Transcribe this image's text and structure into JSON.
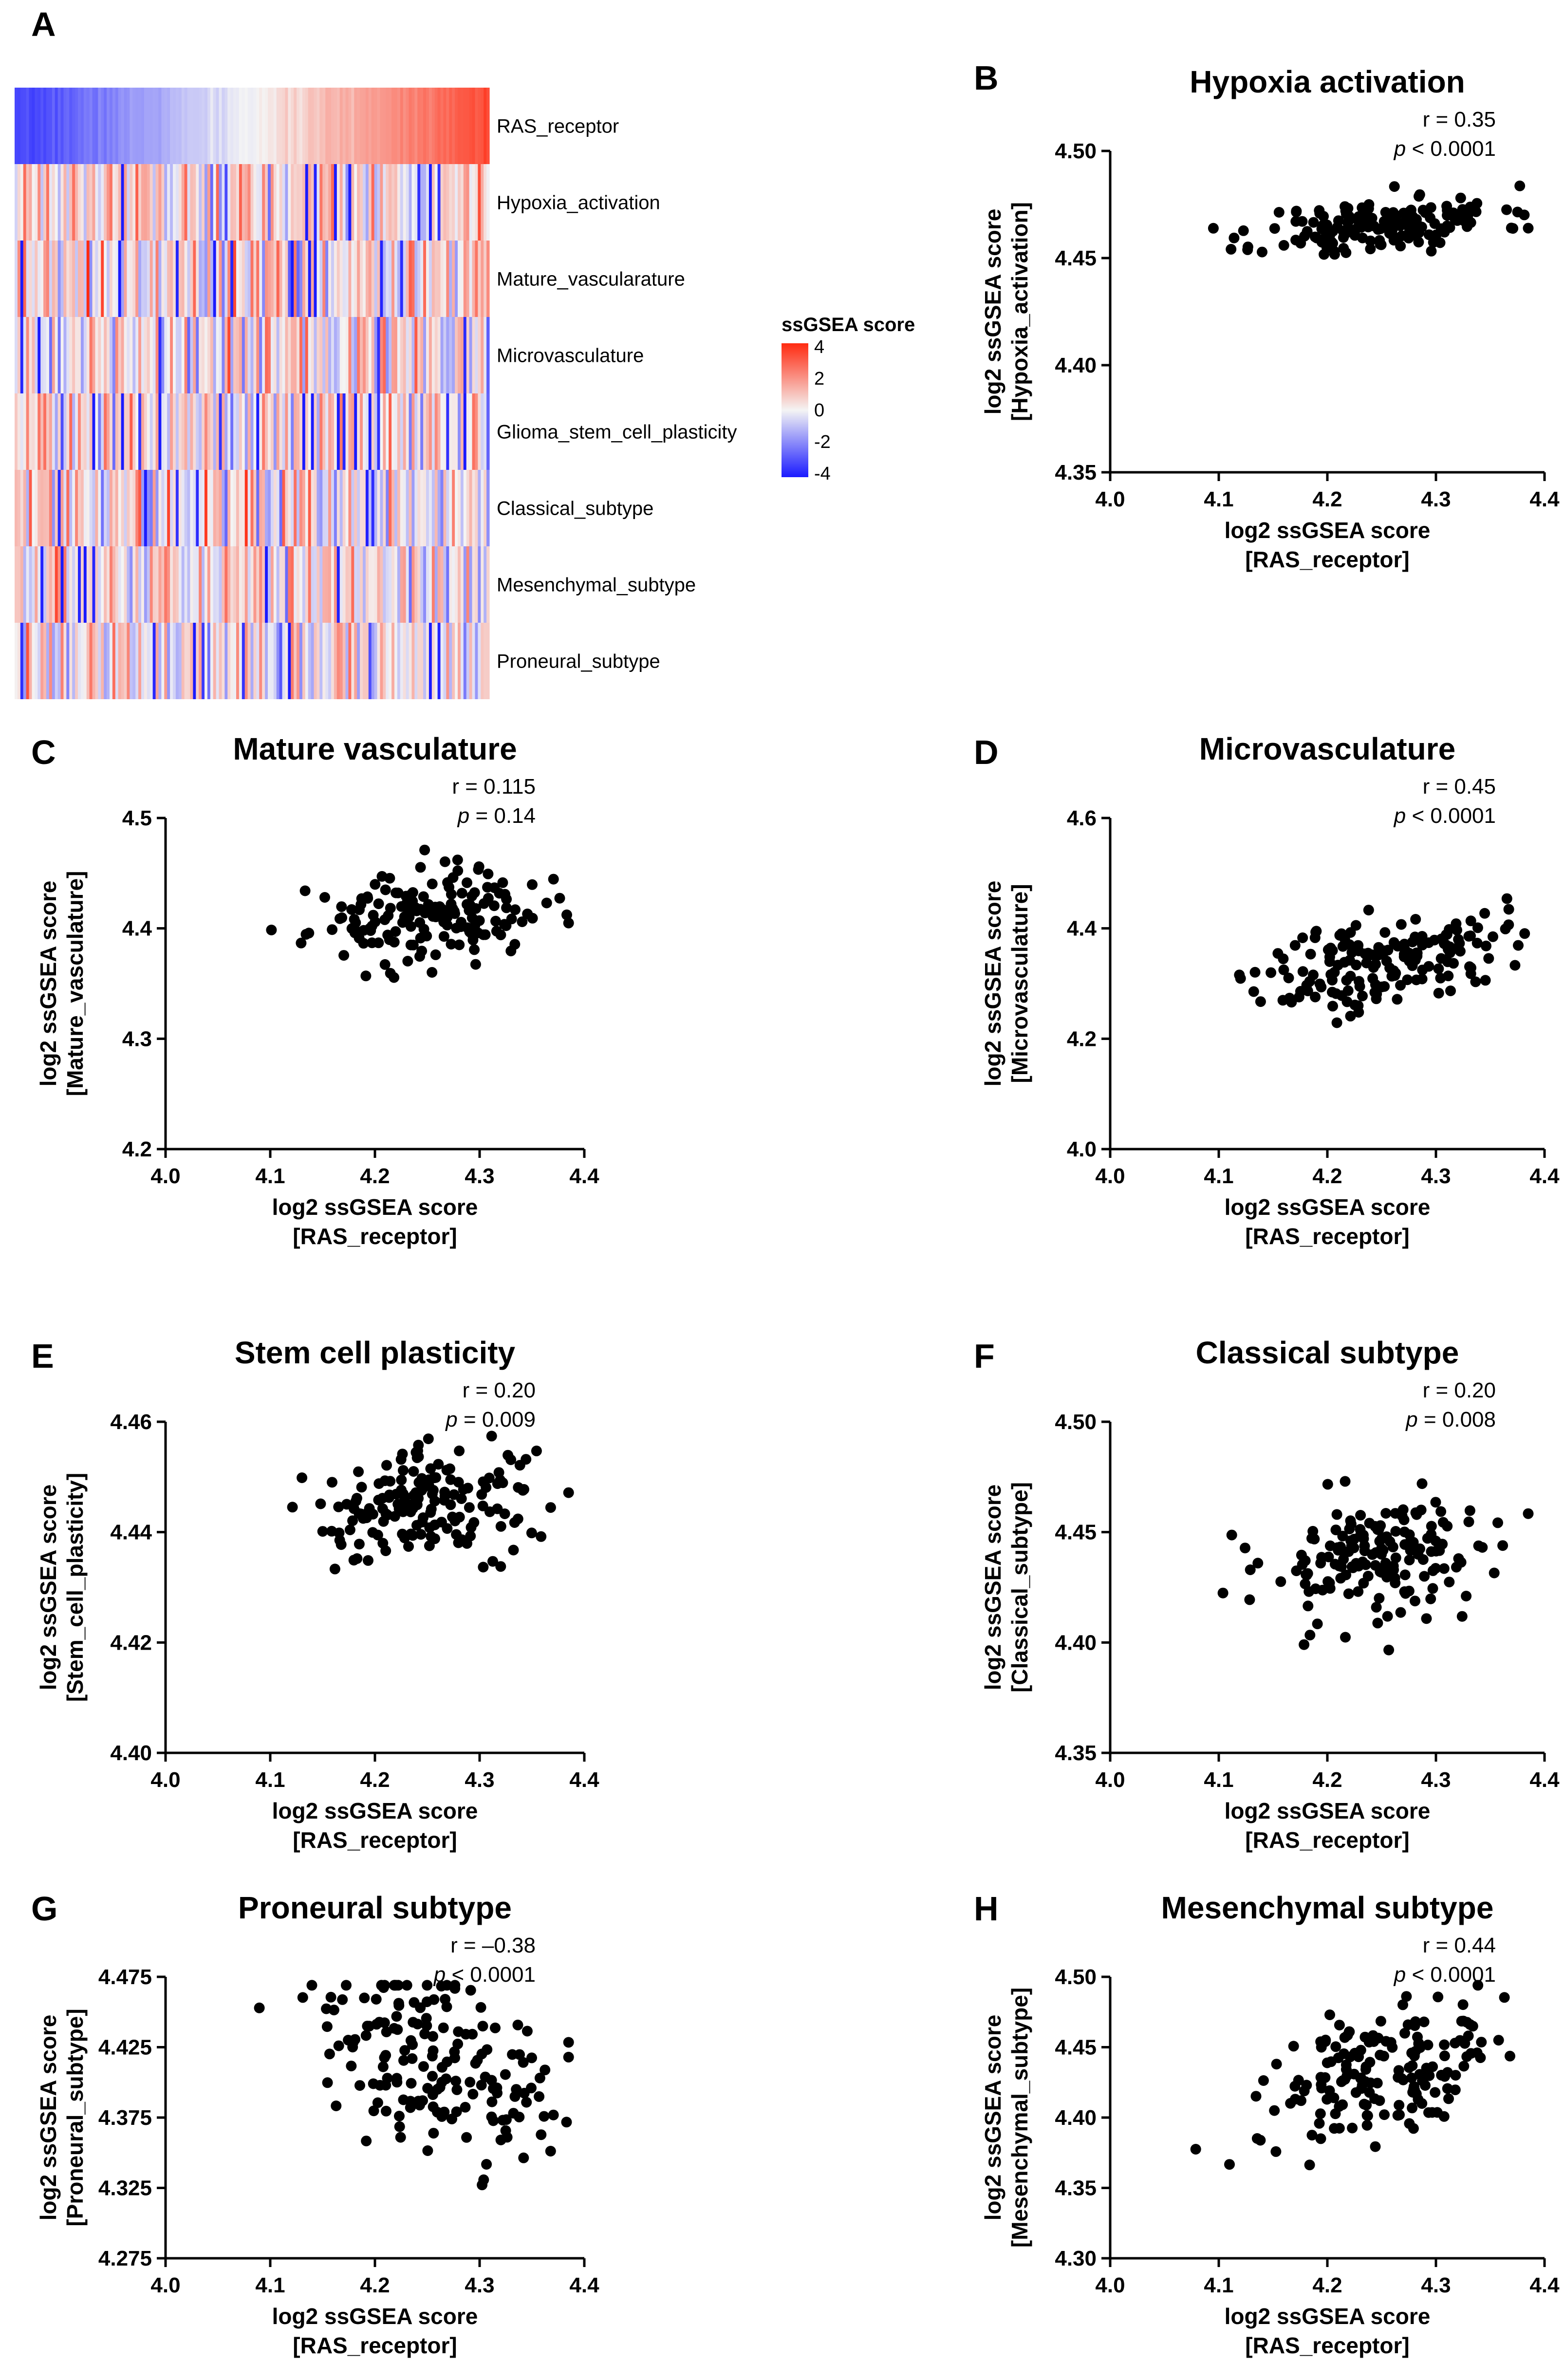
{
  "colors": {
    "low": "#1a1aff",
    "mid": "#f4f4f4",
    "high": "#ff2a10",
    "dot": "#000000"
  },
  "panels": {
    "A": {
      "letter": "A"
    },
    "B": {
      "letter": "B"
    },
    "C": {
      "letter": "C"
    },
    "D": {
      "letter": "D"
    },
    "E": {
      "letter": "E"
    },
    "F": {
      "letter": "F"
    },
    "G": {
      "letter": "G"
    },
    "H": {
      "letter": "H"
    }
  },
  "heatmap": {
    "rows": [
      "RAS_receptor",
      "Hypoxia_activation",
      "Mature_vascularature",
      "Microvasculature",
      "Glioma_stem_cell_plasticity",
      "Classical_subtype",
      "Mesenchymal_subtype",
      "Proneural_subtype"
    ],
    "legend": {
      "title": "ssGSEA score",
      "ticks": [
        "4",
        "2",
        "0",
        "-2",
        "-4"
      ]
    }
  },
  "chart_data": [
    {
      "id": "B",
      "type": "scatter",
      "title": "Hypoxia activation",
      "xlabel": [
        "log2 ssGSEA score",
        "[RAS_receptor]"
      ],
      "ylabel": [
        "log2 ssGSEA score",
        "[Hypoxia_activation]"
      ],
      "xlim": [
        4.0,
        4.4
      ],
      "ylim": [
        4.35,
        4.5
      ],
      "xticks": [
        "4.0",
        "4.1",
        "4.2",
        "4.3",
        "4.4"
      ],
      "yticks": [
        "4.35",
        "4.40",
        "4.45",
        "4.50"
      ],
      "stat_r": "r = 0.35",
      "stat_p_sym": "p",
      "stat_p_rest": " < 0.0001",
      "seed": 11,
      "n": 170,
      "corr": 0.35,
      "xmean": 4.25,
      "ymean": 4.465,
      "ysd": 0.007
    },
    {
      "id": "C",
      "type": "scatter",
      "title": "Mature vasculature",
      "xlabel": [
        "log2 ssGSEA score",
        "[RAS_receptor]"
      ],
      "ylabel": [
        "log2 ssGSEA score",
        "[Mature_vasculature]"
      ],
      "xlim": [
        4.0,
        4.4
      ],
      "ylim": [
        4.2,
        4.5
      ],
      "xticks": [
        "4.0",
        "4.1",
        "4.2",
        "4.3",
        "4.4"
      ],
      "yticks": [
        "4.2",
        "4.3",
        "4.4",
        "4.5"
      ],
      "stat_r": "r = 0.115",
      "stat_p_sym": "p",
      "stat_p_rest": " = 0.14",
      "seed": 23,
      "n": 170,
      "corr": 0.115,
      "xmean": 4.25,
      "ymean": 4.41,
      "ysd": 0.02
    },
    {
      "id": "D",
      "type": "scatter",
      "title": "Microvasculature",
      "xlabel": [
        "log2 ssGSEA score",
        "[RAS_receptor]"
      ],
      "ylabel": [
        "log2 ssGSEA score",
        "[Microvasculature]"
      ],
      "xlim": [
        4.0,
        4.4
      ],
      "ylim": [
        4.0,
        4.6
      ],
      "xticks": [
        "4.0",
        "4.1",
        "4.2",
        "4.3",
        "4.4"
      ],
      "yticks": [
        "4.0",
        "4.2",
        "4.4",
        "4.6"
      ],
      "stat_r": "r = 0.45",
      "stat_p_sym": "p",
      "stat_p_rest": " < 0.0001",
      "seed": 37,
      "n": 170,
      "corr": 0.45,
      "xmean": 4.25,
      "ymean": 4.34,
      "ysd": 0.045
    },
    {
      "id": "E",
      "type": "scatter",
      "title": "Stem cell plasticity",
      "xlabel": [
        "log2 ssGSEA score",
        "[RAS_receptor]"
      ],
      "ylabel": [
        "log2 ssGSEA score",
        "[Stem_cell_plasticity]"
      ],
      "xlim": [
        4.0,
        4.4
      ],
      "ylim": [
        4.4,
        4.46
      ],
      "xticks": [
        "4.0",
        "4.1",
        "4.2",
        "4.3",
        "4.4"
      ],
      "yticks": [
        "4.40",
        "4.42",
        "4.44",
        "4.46"
      ],
      "stat_r": "r = 0.20",
      "stat_p_sym": "p",
      "stat_p_rest": " = 0.009",
      "seed": 41,
      "n": 170,
      "corr": 0.2,
      "xmean": 4.25,
      "ymean": 4.445,
      "ysd": 0.005
    },
    {
      "id": "F",
      "type": "scatter",
      "title": "Classical subtype",
      "xlabel": [
        "log2 ssGSEA score",
        "[RAS_receptor]"
      ],
      "ylabel": [
        "log2 ssGSEA score",
        "[Classical_subtype]"
      ],
      "xlim": [
        4.0,
        4.4
      ],
      "ylim": [
        4.35,
        4.5
      ],
      "xticks": [
        "4.0",
        "4.1",
        "4.2",
        "4.3",
        "4.4"
      ],
      "yticks": [
        "4.35",
        "4.40",
        "4.45",
        "4.50"
      ],
      "stat_r": "r = 0.20",
      "stat_p_sym": "p",
      "stat_p_rest": " = 0.008",
      "seed": 53,
      "n": 170,
      "corr": 0.2,
      "xmean": 4.25,
      "ymean": 4.438,
      "ysd": 0.015
    },
    {
      "id": "G",
      "type": "scatter",
      "title": "Proneural subtype",
      "xlabel": [
        "log2 ssGSEA score",
        "[RAS_receptor]"
      ],
      "ylabel": [
        "log2 ssGSEA score",
        "[Proneural_subtype]"
      ],
      "xlim": [
        4.0,
        4.4
      ],
      "ylim": [
        4.275,
        4.475
      ],
      "xticks": [
        "4.0",
        "4.1",
        "4.2",
        "4.3",
        "4.4"
      ],
      "yticks": [
        "4.275",
        "4.325",
        "4.375",
        "4.425",
        "4.475"
      ],
      "stat_r": "r = –0.38",
      "stat_p_sym": "p",
      "stat_p_rest": " < 0.0001",
      "seed": 67,
      "n": 170,
      "corr": -0.38,
      "xmean": 4.25,
      "ymean": 4.41,
      "ysd": 0.035
    },
    {
      "id": "H",
      "type": "scatter",
      "title": "Mesenchymal subtype",
      "xlabel": [
        "log2 ssGSEA score",
        "[RAS_receptor]"
      ],
      "ylabel": [
        "log2 ssGSEA score",
        "[Mesenchymal_subtype]"
      ],
      "xlim": [
        4.0,
        4.4
      ],
      "ylim": [
        4.3,
        4.5
      ],
      "xticks": [
        "4.0",
        "4.1",
        "4.2",
        "4.3",
        "4.4"
      ],
      "yticks": [
        "4.30",
        "4.35",
        "4.40",
        "4.45",
        "4.50"
      ],
      "stat_r": "r = 0.44",
      "stat_p_sym": "p",
      "stat_p_rest": " < 0.0001",
      "seed": 79,
      "n": 170,
      "corr": 0.44,
      "xmean": 4.25,
      "ymean": 4.435,
      "ysd": 0.025
    }
  ]
}
